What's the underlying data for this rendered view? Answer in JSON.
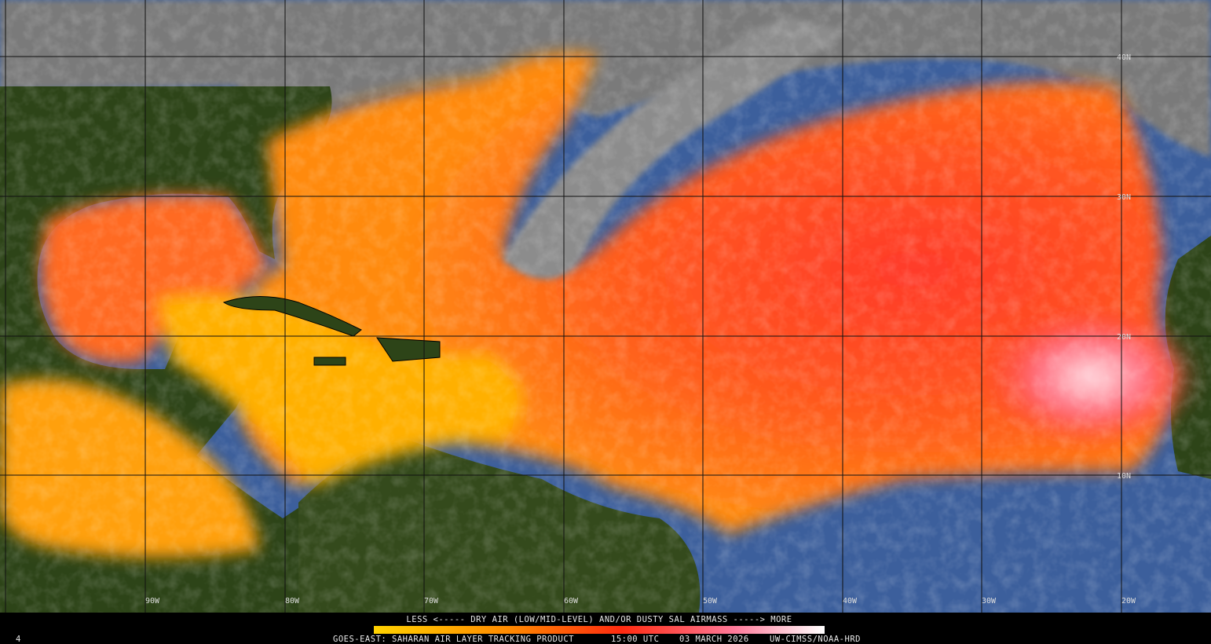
{
  "map": {
    "lat_labels": [
      "40N",
      "30N",
      "20N",
      "10N"
    ],
    "lon_labels": [
      "90W",
      "80W",
      "70W",
      "60W",
      "50W",
      "40W",
      "30W",
      "20W"
    ]
  },
  "legend": {
    "caption": "LESS <----- DRY AIR (LOW/MID-LEVEL) AND/OR DUSTY SAL AIRMASS -----> MORE"
  },
  "footer": {
    "corner": "4",
    "product": "GOES-EAST: SAHARAN AIR LAYER TRACKING PRODUCT",
    "time": "15:00 UTC",
    "date": "03 MARCH 2026",
    "credit": "UW-CIMSS/NOAA-HRD"
  }
}
